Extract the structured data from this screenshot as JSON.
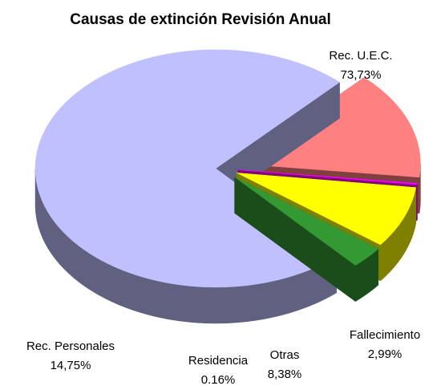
{
  "chart_data": {
    "type": "pie",
    "title": "Causas de extinción Revisión Anual",
    "categories": [
      "Rec. U.E.C.",
      "Rec. Personales",
      "Residencia",
      "Otras",
      "Fallecimiento"
    ],
    "values": [
      73.73,
      14.75,
      0.16,
      8.38,
      2.99
    ],
    "value_labels": [
      "73,73%",
      "14,75%",
      "0.16%",
      "8,38%",
      "2,99%"
    ],
    "colors": [
      "#c0c0ff",
      "#ff8080",
      "#ff00ff",
      "#ffff00",
      "#339933"
    ]
  }
}
